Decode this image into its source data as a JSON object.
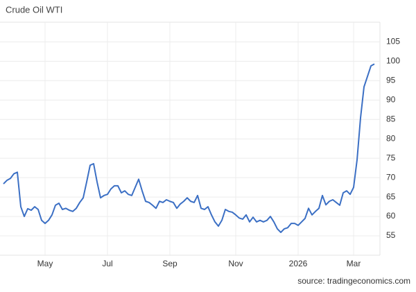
{
  "chart_data": {
    "type": "line",
    "title": "Crude Oil WTI",
    "source": "source: tradingeconomics.com",
    "categories": [
      null,
      null,
      null,
      null,
      null,
      null,
      null,
      null,
      null,
      null,
      null,
      null,
      "May",
      null,
      null,
      null,
      null,
      null,
      null,
      null,
      null,
      null,
      null,
      null,
      null,
      null,
      null,
      null,
      null,
      null,
      "Jul",
      null,
      null,
      null,
      null,
      null,
      null,
      null,
      null,
      null,
      null,
      null,
      null,
      null,
      null,
      null,
      null,
      null,
      "Sep",
      null,
      null,
      null,
      null,
      null,
      null,
      null,
      null,
      null,
      null,
      null,
      null,
      null,
      null,
      null,
      null,
      null,
      null,
      "Nov",
      null,
      null,
      null,
      null,
      null,
      null,
      null,
      null,
      null,
      null,
      null,
      null,
      null,
      null,
      null,
      null,
      null,
      "2026",
      null,
      null,
      null,
      null,
      null,
      null,
      null,
      null,
      null,
      null,
      null,
      null,
      null,
      null,
      null,
      "Mar",
      null,
      null,
      null,
      null,
      null,
      null
    ],
    "series": [
      {
        "name": "Crude Oil WTI",
        "color": "#3b6fc4",
        "values": [
          68.4,
          69.3,
          69.8,
          71,
          71.4,
          62.5,
          60,
          62,
          61.6,
          62.5,
          61.8,
          59,
          58.2,
          59,
          60.4,
          62.9,
          63.4,
          61.8,
          62.1,
          61.6,
          61.3,
          62.1,
          63.6,
          64.8,
          68.9,
          73.2,
          73.6,
          68.9,
          64.8,
          65.4,
          65.7,
          67.1,
          67.9,
          67.9,
          66.1,
          66.6,
          65.7,
          65.4,
          67.5,
          69.6,
          66.6,
          63.9,
          63.6,
          62.9,
          62.1,
          63.9,
          63.6,
          64.3,
          63.9,
          63.6,
          62.1,
          63.2,
          63.9,
          64.8,
          63.9,
          63.6,
          65.4,
          62.1,
          61.8,
          62.5,
          60.4,
          58.6,
          57.5,
          59,
          61.8,
          61.3,
          61.1,
          60.4,
          59.6,
          59.3,
          60.4,
          58.6,
          59.8,
          58.6,
          59,
          58.6,
          59,
          60,
          58.6,
          56.8,
          55.9,
          56.8,
          57.1,
          58.2,
          58.2,
          57.7,
          58.6,
          59.5,
          62.1,
          60.4,
          61.3,
          62.1,
          65.4,
          63,
          63.9,
          64.3,
          63.6,
          62.9,
          66.1,
          66.6,
          65.7,
          67.5,
          74.6,
          85.4,
          93.4,
          96.1,
          98.8,
          99.3
        ]
      }
    ],
    "ylim": [
      50,
      109
    ],
    "yticks": [
      55,
      60,
      65,
      70,
      75,
      80,
      85,
      90,
      95,
      100,
      105
    ],
    "grid": true
  }
}
